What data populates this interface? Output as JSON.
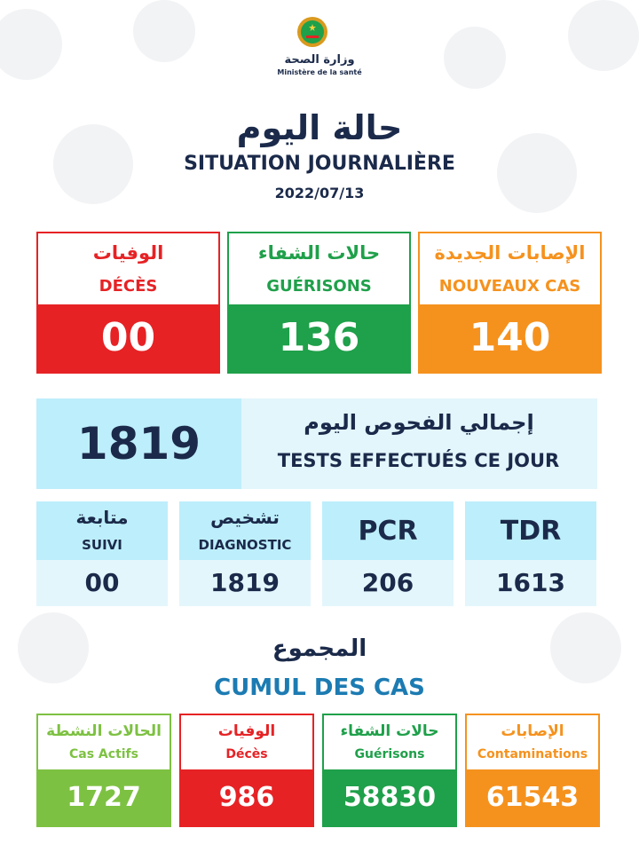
{
  "colors": {
    "navy": "#1b2a4a",
    "red": "#e62225",
    "green": "#1fa04a",
    "orange": "#f5921e",
    "lightgreen": "#7dc142",
    "cyan_dark": "#bdeefb",
    "cyan_light": "#e3f6fc",
    "blue_text": "#1c7bb2"
  },
  "header": {
    "ministry_ar": "وزارة الصحة",
    "ministry_fr": "Ministère de la santé",
    "title_ar": "حالة اليوم",
    "title_fr": "SITUATION JOURNALIÈRE",
    "date": "2022/07/13"
  },
  "daily": {
    "deces": {
      "ar": "الوفيات",
      "fr": "DÉCÈS",
      "value": "00"
    },
    "guerisons": {
      "ar": "حالات الشفاء",
      "fr": "GUÉRISONS",
      "value": "136"
    },
    "nouveaux": {
      "ar": "الإصابات الجديدة",
      "fr": "NOUVEAUX CAS",
      "value": "140"
    }
  },
  "tests": {
    "total": "1819",
    "ar": "إجمالي الفحوص اليوم",
    "fr": "TESTS EFFECTUÉS CE JOUR"
  },
  "sub": {
    "suivi": {
      "ar": "متابعة",
      "fr": "SUIVI",
      "value": "00"
    },
    "diagnostic": {
      "ar": "تشخيص",
      "fr": "DIAGNOSTIC",
      "value": "1819"
    },
    "pcr": {
      "label": "PCR",
      "value": "206"
    },
    "tdr": {
      "label": "TDR",
      "value": "1613"
    }
  },
  "cumul": {
    "title_ar": "المجموع",
    "title_fr": "CUMUL DES CAS",
    "actifs": {
      "ar": "الحالات النشطة",
      "fr": "Cas Actifs",
      "value": "1727"
    },
    "deces": {
      "ar": "الوفيات",
      "fr": "Décès",
      "value": "986"
    },
    "guerisons": {
      "ar": "حالات الشفاء",
      "fr": "Guérisons",
      "value": "58830"
    },
    "contaminations": {
      "ar": "الإصابات",
      "fr": "Contaminations",
      "value": "61543"
    }
  }
}
